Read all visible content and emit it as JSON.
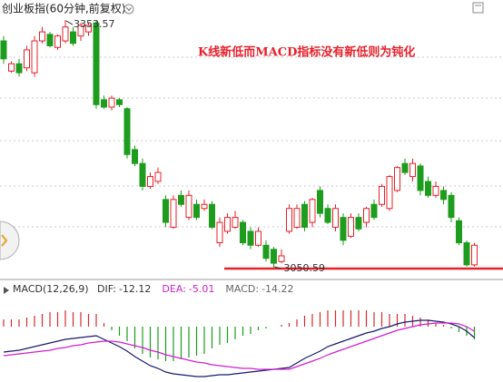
{
  "chart_data": [
    {
      "type": "candlestick",
      "title": "创业板指(60分钟,前复权)",
      "annotation": "K线新低而MACD指标没有新低则为钝化",
      "high_label": 3353.57,
      "low_label": 3050.59,
      "up_color": "#e8202a",
      "down_color": "#1e9c1e",
      "ylim": [
        3040,
        3378
      ],
      "open": [
        3328,
        3291,
        3300,
        3295,
        3289,
        3328,
        3336,
        3320,
        3328,
        3339,
        3334,
        3339,
        3350,
        3256,
        3247,
        3256,
        3245,
        3195,
        3178,
        3150,
        3156,
        3134,
        3100,
        3139,
        3112,
        3128,
        3123,
        3128,
        3081,
        3095,
        3100,
        3106,
        3095,
        3078,
        3078,
        3073,
        3058,
        3095,
        3100,
        3128,
        3106,
        3145,
        3123,
        3100,
        3112,
        3089,
        3112,
        3106,
        3128,
        3128,
        3123,
        3145,
        3178,
        3162,
        3175,
        3156,
        3139,
        3145,
        3139,
        3108,
        3081,
        3054
      ],
      "high": [
        3334,
        3303,
        3306,
        3322,
        3334,
        3345,
        3339,
        3336,
        3353.57,
        3345,
        3350,
        3350,
        3352,
        3261,
        3261,
        3258,
        3247,
        3200,
        3184,
        3167,
        3173,
        3139,
        3139,
        3145,
        3145,
        3134,
        3134,
        3132,
        3112,
        3117,
        3120,
        3109,
        3100,
        3100,
        3084,
        3076,
        3073,
        3128,
        3128,
        3132,
        3136,
        3150,
        3128,
        3128,
        3117,
        3117,
        3117,
        3125,
        3134,
        3153,
        3164,
        3175,
        3184,
        3184,
        3178,
        3162,
        3156,
        3150,
        3143,
        3112,
        3084,
        3081
      ],
      "low": [
        3300,
        3289,
        3284,
        3291,
        3284,
        3325,
        3320,
        3317,
        3325,
        3322,
        3328,
        3334,
        3245,
        3245,
        3243,
        3247,
        3184,
        3175,
        3145,
        3147,
        3153,
        3100,
        3098,
        3125,
        3109,
        3109,
        3120,
        3098,
        3076,
        3092,
        3098,
        3078,
        3073,
        3076,
        3058,
        3050.59,
        3056,
        3092,
        3098,
        3095,
        3100,
        3112,
        3104,
        3095,
        3078,
        3087,
        3095,
        3100,
        3109,
        3125,
        3120,
        3143,
        3164,
        3156,
        3139,
        3136,
        3136,
        3128,
        3106,
        3078,
        3052,
        3052
      ],
      "close": [
        3306,
        3300,
        3289,
        3317,
        3328,
        3339,
        3322,
        3334,
        3345,
        3325,
        3347,
        3347,
        3250,
        3247,
        3258,
        3250,
        3189,
        3178,
        3150,
        3162,
        3167,
        3106,
        3134,
        3128,
        3139,
        3112,
        3128,
        3100,
        3106,
        3112,
        3112,
        3081,
        3078,
        3095,
        3062,
        3056,
        3065,
        3123,
        3123,
        3100,
        3134,
        3117,
        3106,
        3123,
        3084,
        3112,
        3098,
        3123,
        3112,
        3150,
        3162,
        3173,
        3167,
        3178,
        3145,
        3139,
        3150,
        3134,
        3112,
        3081,
        3054,
        3078
      ]
    },
    {
      "type": "macd",
      "title": "MACD(12,26,9)",
      "ylim": [
        -60,
        27
      ],
      "series": [
        {
          "name": "DIF",
          "color": "#1a1a6e",
          "values": [
            -28,
            -27,
            -26,
            -24,
            -22,
            -20,
            -18,
            -16,
            -14,
            -13,
            -12,
            -11,
            -10,
            -14,
            -18,
            -22,
            -27,
            -33,
            -38,
            -43,
            -46,
            -50,
            -52,
            -53,
            -54,
            -55,
            -55,
            -54,
            -53,
            -53,
            -52,
            -51,
            -50,
            -49,
            -48,
            -47,
            -46,
            -45,
            -40,
            -35,
            -31,
            -27,
            -22,
            -19,
            -16,
            -13,
            -10,
            -7,
            -5,
            -2,
            0,
            3,
            5,
            6,
            7,
            7,
            6,
            5,
            3,
            0,
            -5,
            -12.12
          ]
        },
        {
          "name": "DEA",
          "color": "#d020d0",
          "values": [
            -32,
            -31,
            -30,
            -29,
            -28,
            -27,
            -26,
            -24,
            -23,
            -21,
            -20,
            -18,
            -17,
            -16,
            -16,
            -17,
            -19,
            -21,
            -23,
            -26,
            -28,
            -31,
            -33,
            -35,
            -37,
            -39,
            -40,
            -42,
            -43,
            -44,
            -45,
            -46,
            -46,
            -47,
            -47,
            -47,
            -47,
            -47,
            -44,
            -41,
            -38,
            -35,
            -31,
            -28,
            -25,
            -22,
            -19,
            -16,
            -13,
            -10,
            -7,
            -4,
            -2,
            0,
            2,
            3,
            4,
            4,
            4,
            3,
            0,
            -5.01
          ]
        },
        {
          "name": "MACD",
          "color": "#d62b2b",
          "negative_color": "#1e9c1e",
          "values": [
            8,
            8,
            8,
            10,
            12,
            14,
            16,
            16,
            18,
            16,
            16,
            14,
            14,
            4,
            -4,
            -10,
            -16,
            -24,
            -30,
            -34,
            -36,
            -38,
            -38,
            -36,
            -34,
            -32,
            -30,
            -24,
            -20,
            -18,
            -14,
            -10,
            -8,
            -4,
            -2,
            0,
            2,
            4,
            8,
            12,
            14,
            16,
            18,
            18,
            18,
            18,
            18,
            18,
            16,
            16,
            14,
            14,
            14,
            12,
            10,
            8,
            4,
            2,
            -2,
            -6,
            -10,
            -14.22
          ]
        }
      ]
    }
  ]
}
